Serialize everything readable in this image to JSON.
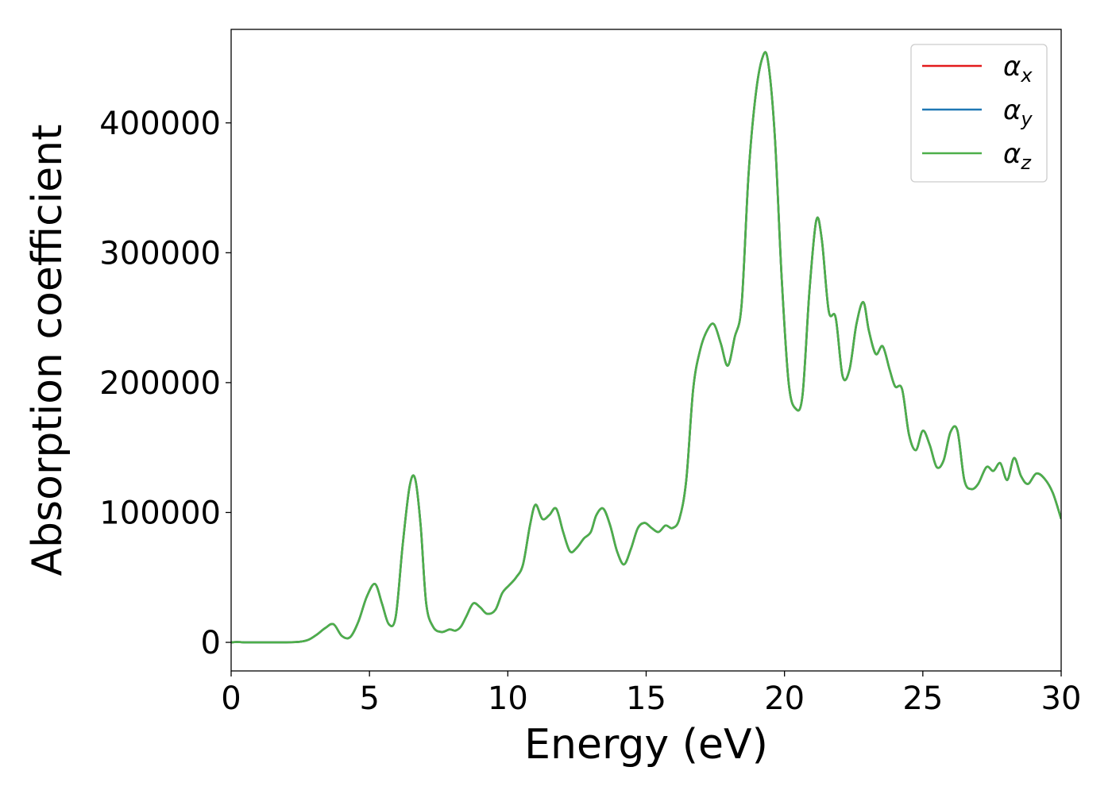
{
  "chart_data": {
    "type": "line",
    "title": "",
    "xlabel": "Energy (eV)",
    "ylabel": "Absorption coefficient",
    "xlim": [
      0,
      30
    ],
    "ylim": [
      -22000,
      472000
    ],
    "xticks": [
      0,
      5,
      10,
      15,
      20,
      25,
      30
    ],
    "yticks": [
      0,
      100000,
      200000,
      300000,
      400000
    ],
    "xtick_labels": [
      "0",
      "5",
      "10",
      "15",
      "20",
      "25",
      "30"
    ],
    "ytick_labels": [
      "0",
      "100000",
      "200000",
      "300000",
      "400000"
    ],
    "grid": false,
    "legend_position": "top-right",
    "x": [
      0,
      0.2,
      0.5,
      1,
      1.5,
      2,
      2.5,
      2.8,
      3.1,
      3.4,
      3.7,
      4,
      4.3,
      4.6,
      4.9,
      5.2,
      5.45,
      5.7,
      5.95,
      6.2,
      6.45,
      6.65,
      6.85,
      7.05,
      7.3,
      7.6,
      7.9,
      8.1,
      8.3,
      8.5,
      8.75,
      9,
      9.25,
      9.55,
      9.8,
      10.05,
      10.3,
      10.55,
      10.8,
      11.0,
      11.25,
      11.5,
      11.75,
      12.0,
      12.25,
      12.5,
      12.75,
      13.0,
      13.2,
      13.45,
      13.7,
      13.95,
      14.2,
      14.45,
      14.7,
      14.95,
      15.2,
      15.45,
      15.7,
      15.95,
      16.2,
      16.45,
      16.7,
      16.95,
      17.2,
      17.45,
      17.7,
      17.95,
      18.2,
      18.45,
      18.7,
      18.95,
      19.2,
      19.4,
      19.65,
      19.9,
      20.15,
      20.4,
      20.65,
      20.9,
      21.15,
      21.35,
      21.6,
      21.85,
      22.1,
      22.35,
      22.6,
      22.85,
      23.05,
      23.3,
      23.55,
      23.8,
      24.0,
      24.25,
      24.5,
      24.75,
      25.0,
      25.25,
      25.5,
      25.75,
      26.0,
      26.25,
      26.5,
      26.75,
      27.0,
      27.3,
      27.55,
      27.8,
      28.05,
      28.3,
      28.55,
      28.8,
      29.1,
      29.4,
      29.7,
      30
    ],
    "series": [
      {
        "name": "α_x",
        "color": "#e31a1c",
        "values": [
          0,
          300,
          0,
          0,
          0,
          0,
          500,
          2000,
          6000,
          11000,
          14000,
          5000,
          4000,
          16000,
          35000,
          45000,
          30000,
          14000,
          20000,
          75000,
          120000,
          126000,
          90000,
          30000,
          12000,
          8000,
          10000,
          9000,
          12000,
          20000,
          30000,
          27000,
          22000,
          25000,
          38000,
          44000,
          50000,
          60000,
          90000,
          106000,
          95000,
          98000,
          103000,
          85000,
          70000,
          73000,
          80000,
          85000,
          98000,
          103000,
          90000,
          70000,
          60000,
          72000,
          88000,
          92000,
          88000,
          85000,
          90000,
          88000,
          95000,
          125000,
          195000,
          225000,
          240000,
          245000,
          230000,
          213000,
          235000,
          260000,
          360000,
          420000,
          450000,
          448000,
          390000,
          280000,
          200000,
          180000,
          190000,
          270000,
          325000,
          310000,
          255000,
          250000,
          205000,
          210000,
          245000,
          262000,
          240000,
          222000,
          228000,
          210000,
          197000,
          195000,
          160000,
          148000,
          163000,
          152000,
          135000,
          140000,
          162000,
          163000,
          125000,
          118000,
          122000,
          135000,
          132000,
          138000,
          125000,
          142000,
          128000,
          122000,
          130000,
          126000,
          115000,
          95000
        ]
      },
      {
        "name": "α_y",
        "color": "#1f78b4",
        "values": [
          0,
          300,
          0,
          0,
          0,
          0,
          500,
          2000,
          6000,
          11000,
          14000,
          5000,
          4000,
          16000,
          35000,
          45000,
          30000,
          14000,
          20000,
          75000,
          120000,
          126000,
          90000,
          30000,
          12000,
          8000,
          10000,
          9000,
          12000,
          20000,
          30000,
          27000,
          22000,
          25000,
          38000,
          44000,
          50000,
          60000,
          90000,
          106000,
          95000,
          98000,
          103000,
          85000,
          70000,
          73000,
          80000,
          85000,
          98000,
          103000,
          90000,
          70000,
          60000,
          72000,
          88000,
          92000,
          88000,
          85000,
          90000,
          88000,
          95000,
          125000,
          195000,
          225000,
          240000,
          245000,
          230000,
          213000,
          235000,
          260000,
          360000,
          420000,
          450000,
          448000,
          390000,
          280000,
          200000,
          180000,
          190000,
          270000,
          325000,
          310000,
          255000,
          250000,
          205000,
          210000,
          245000,
          262000,
          240000,
          222000,
          228000,
          210000,
          197000,
          195000,
          160000,
          148000,
          163000,
          152000,
          135000,
          140000,
          162000,
          163000,
          125000,
          118000,
          122000,
          135000,
          132000,
          138000,
          125000,
          142000,
          128000,
          122000,
          130000,
          126000,
          115000,
          95000
        ]
      },
      {
        "name": "α_z",
        "color": "#4daf4a",
        "values": [
          0,
          300,
          0,
          0,
          0,
          0,
          500,
          2000,
          6000,
          11000,
          14000,
          5000,
          4000,
          16000,
          35000,
          45000,
          30000,
          14000,
          20000,
          75000,
          120000,
          126000,
          90000,
          30000,
          12000,
          8000,
          10000,
          9000,
          12000,
          20000,
          30000,
          27000,
          22000,
          25000,
          38000,
          44000,
          50000,
          60000,
          90000,
          106000,
          95000,
          98000,
          103000,
          85000,
          70000,
          73000,
          80000,
          85000,
          98000,
          103000,
          90000,
          70000,
          60000,
          72000,
          88000,
          92000,
          88000,
          85000,
          90000,
          88000,
          95000,
          125000,
          195000,
          225000,
          240000,
          245000,
          230000,
          213000,
          235000,
          260000,
          360000,
          420000,
          450000,
          448000,
          390000,
          280000,
          200000,
          180000,
          190000,
          270000,
          325000,
          310000,
          255000,
          250000,
          205000,
          210000,
          245000,
          262000,
          240000,
          222000,
          228000,
          210000,
          197000,
          195000,
          160000,
          148000,
          163000,
          152000,
          135000,
          140000,
          162000,
          163000,
          125000,
          118000,
          122000,
          135000,
          132000,
          138000,
          125000,
          142000,
          128000,
          122000,
          130000,
          126000,
          115000,
          95000
        ]
      }
    ],
    "legend": {
      "entries": [
        {
          "base": "α",
          "sub": "x",
          "color": "#e31a1c"
        },
        {
          "base": "α",
          "sub": "y",
          "color": "#1f78b4"
        },
        {
          "base": "α",
          "sub": "z",
          "color": "#4daf4a"
        }
      ]
    }
  }
}
